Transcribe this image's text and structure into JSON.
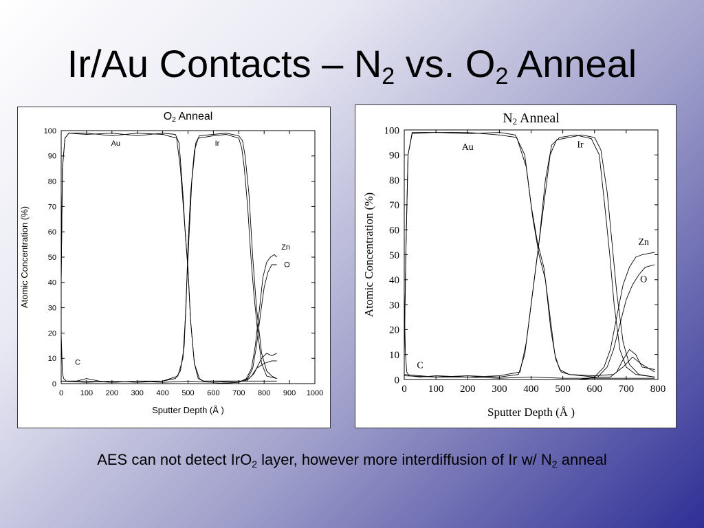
{
  "slide": {
    "title_main": "Ir/Au Contacts – N",
    "title_sub1": "2",
    "title_mid": " vs. O",
    "title_sub2": "2",
    "title_end": " Anneal",
    "caption_pre": "AES can not detect IrO",
    "caption_sub1": "2",
    "caption_mid": " layer, however more interdiffusion of Ir w/ N",
    "caption_sub2": "2",
    "caption_end": " anneal"
  },
  "chart_data": [
    {
      "type": "line",
      "title": "O",
      "title_sub": "2",
      "title_end": " Anneal",
      "xlabel": "Sputter Depth (Å )",
      "ylabel": "Atomic Concentration (%)",
      "xlim": [
        0,
        1000
      ],
      "ylim": [
        0,
        100
      ],
      "xticks": [
        0,
        100,
        200,
        300,
        400,
        500,
        600,
        700,
        800,
        900,
        1000
      ],
      "yticks": [
        0,
        10,
        20,
        30,
        40,
        50,
        60,
        70,
        80,
        90,
        100
      ],
      "annotations": [
        {
          "text": "Au",
          "x": 215,
          "y": 94
        },
        {
          "text": "Ir",
          "x": 615,
          "y": 94
        },
        {
          "text": "Zn",
          "x": 885,
          "y": 53
        },
        {
          "text": "O",
          "x": 890,
          "y": 46
        },
        {
          "text": "C",
          "x": 65,
          "y": 7.5
        }
      ],
      "series": [
        {
          "values": [
            [
              0,
              40
            ],
            [
              5,
              85
            ],
            [
              15,
              97
            ],
            [
              30,
              99
            ],
            [
              100,
              98.5
            ],
            [
              200,
              99
            ],
            [
              300,
              98
            ],
            [
              400,
              99
            ],
            [
              450,
              98.5
            ],
            [
              465,
              95
            ],
            [
              480,
              75
            ],
            [
              490,
              58
            ],
            [
              500,
              45
            ],
            [
              510,
              25
            ],
            [
              525,
              8
            ],
            [
              540,
              2
            ],
            [
              560,
              1
            ],
            [
              700,
              1
            ],
            [
              720,
              1
            ],
            [
              740,
              2
            ],
            [
              760,
              4
            ],
            [
              790,
              10
            ],
            [
              810,
              12
            ],
            [
              830,
              11
            ],
            [
              850,
              12
            ]
          ]
        },
        {
          "values": [
            [
              0,
              40
            ],
            [
              5,
              85
            ],
            [
              15,
              97
            ],
            [
              30,
              99
            ],
            [
              100,
              99
            ],
            [
              200,
              98
            ],
            [
              300,
              99
            ],
            [
              400,
              98.5
            ],
            [
              455,
              97
            ],
            [
              470,
              85
            ],
            [
              485,
              65
            ],
            [
              500,
              45
            ],
            [
              510,
              25
            ],
            [
              525,
              8
            ],
            [
              545,
              2
            ],
            [
              560,
              1
            ],
            [
              700,
              1
            ],
            [
              730,
              1
            ],
            [
              750,
              3
            ],
            [
              770,
              6
            ],
            [
              800,
              8
            ],
            [
              830,
              9
            ],
            [
              850,
              9
            ]
          ]
        },
        {
          "values": [
            [
              0,
              1
            ],
            [
              100,
              1
            ],
            [
              200,
              0.5
            ],
            [
              300,
              1
            ],
            [
              400,
              1
            ],
            [
              450,
              2
            ],
            [
              470,
              5
            ],
            [
              485,
              15
            ],
            [
              495,
              40
            ],
            [
              505,
              60
            ],
            [
              515,
              80
            ],
            [
              530,
              95
            ],
            [
              545,
              98
            ],
            [
              600,
              98.5
            ],
            [
              650,
              99
            ],
            [
              700,
              98
            ],
            [
              715,
              96
            ],
            [
              725,
              90
            ],
            [
              740,
              75
            ],
            [
              755,
              50
            ],
            [
              770,
              30
            ],
            [
              790,
              12
            ],
            [
              810,
              5
            ],
            [
              830,
              3
            ],
            [
              850,
              2
            ]
          ]
        },
        {
          "values": [
            [
              0,
              1
            ],
            [
              100,
              0.5
            ],
            [
              200,
              1
            ],
            [
              300,
              0.5
            ],
            [
              400,
              1
            ],
            [
              460,
              3
            ],
            [
              480,
              10
            ],
            [
              492,
              30
            ],
            [
              500,
              55
            ],
            [
              510,
              75
            ],
            [
              525,
              92
            ],
            [
              540,
              97
            ],
            [
              600,
              98
            ],
            [
              650,
              98.5
            ],
            [
              700,
              97
            ],
            [
              712,
              93
            ],
            [
              722,
              85
            ],
            [
              735,
              70
            ],
            [
              748,
              50
            ],
            [
              760,
              35
            ],
            [
              775,
              20
            ],
            [
              790,
              8
            ],
            [
              810,
              3
            ],
            [
              850,
              2
            ]
          ]
        },
        {
          "values": [
            [
              0,
              0
            ],
            [
              600,
              0
            ],
            [
              700,
              0.5
            ],
            [
              730,
              2
            ],
            [
              750,
              6
            ],
            [
              765,
              15
            ],
            [
              780,
              28
            ],
            [
              795,
              42
            ],
            [
              810,
              48
            ],
            [
              825,
              50
            ],
            [
              840,
              51
            ],
            [
              850,
              50
            ]
          ]
        },
        {
          "values": [
            [
              0,
              0
            ],
            [
              600,
              0
            ],
            [
              700,
              0.5
            ],
            [
              735,
              2
            ],
            [
              755,
              6
            ],
            [
              770,
              15
            ],
            [
              785,
              27
            ],
            [
              800,
              38
            ],
            [
              815,
              44
            ],
            [
              830,
              47
            ],
            [
              850,
              47
            ]
          ]
        },
        {
          "values": [
            [
              0,
              20
            ],
            [
              5,
              4
            ],
            [
              10,
              2
            ],
            [
              20,
              1
            ],
            [
              60,
              1
            ],
            [
              100,
              2
            ],
            [
              150,
              1
            ],
            [
              200,
              0.5
            ],
            [
              300,
              1
            ],
            [
              400,
              0.5
            ],
            [
              500,
              1
            ],
            [
              600,
              0.5
            ],
            [
              700,
              1
            ],
            [
              850,
              1
            ]
          ]
        }
      ]
    },
    {
      "type": "line",
      "title": "N",
      "title_sub": "2",
      "title_end": " Anneal",
      "xlabel": "Sputter Depth (Å )",
      "ylabel": "Atomic Concentration (%)",
      "xlim": [
        0,
        800
      ],
      "ylim": [
        0,
        100
      ],
      "xticks": [
        0,
        100,
        200,
        300,
        400,
        500,
        600,
        700,
        800
      ],
      "yticks": [
        0,
        10,
        20,
        30,
        40,
        50,
        60,
        70,
        80,
        90,
        100
      ],
      "annotations": [
        {
          "text": "Au",
          "x": 200,
          "y": 92
        },
        {
          "text": "Ir",
          "x": 555,
          "y": 93
        },
        {
          "text": "Zn",
          "x": 755,
          "y": 54
        },
        {
          "text": "O",
          "x": 755,
          "y": 39
        },
        {
          "text": "C",
          "x": 50,
          "y": 4.5
        }
      ],
      "series": [
        {
          "values": [
            [
              0,
              10
            ],
            [
              5,
              50
            ],
            [
              12,
              90
            ],
            [
              25,
              99
            ],
            [
              100,
              99
            ],
            [
              200,
              98.5
            ],
            [
              300,
              99
            ],
            [
              350,
              98
            ],
            [
              380,
              90
            ],
            [
              400,
              70
            ],
            [
              420,
              55
            ],
            [
              440,
              45
            ],
            [
              460,
              25
            ],
            [
              475,
              10
            ],
            [
              490,
              4
            ],
            [
              520,
              2
            ],
            [
              600,
              1
            ],
            [
              650,
              1
            ],
            [
              670,
              3
            ],
            [
              690,
              8
            ],
            [
              710,
              12
            ],
            [
              730,
              10
            ],
            [
              750,
              5
            ],
            [
              790,
              4
            ]
          ]
        },
        {
          "values": [
            [
              0,
              10
            ],
            [
              5,
              50
            ],
            [
              12,
              90
            ],
            [
              25,
              98.5
            ],
            [
              100,
              99
            ],
            [
              200,
              99
            ],
            [
              300,
              98
            ],
            [
              355,
              97
            ],
            [
              385,
              85
            ],
            [
              405,
              65
            ],
            [
              425,
              50
            ],
            [
              445,
              40
            ],
            [
              462,
              20
            ],
            [
              478,
              8
            ],
            [
              495,
              3
            ],
            [
              520,
              2
            ],
            [
              600,
              1.5
            ],
            [
              660,
              2
            ],
            [
              690,
              5
            ],
            [
              720,
              9
            ],
            [
              750,
              6
            ],
            [
              790,
              3
            ]
          ]
        },
        {
          "values": [
            [
              0,
              2
            ],
            [
              100,
              1
            ],
            [
              200,
              1.5
            ],
            [
              300,
              1
            ],
            [
              360,
              2
            ],
            [
              380,
              10
            ],
            [
              400,
              30
            ],
            [
              420,
              50
            ],
            [
              440,
              70
            ],
            [
              460,
              90
            ],
            [
              480,
              96
            ],
            [
              520,
              97
            ],
            [
              560,
              98
            ],
            [
              600,
              97
            ],
            [
              620,
              92
            ],
            [
              640,
              75
            ],
            [
              655,
              55
            ],
            [
              670,
              35
            ],
            [
              690,
              15
            ],
            [
              710,
              6
            ],
            [
              740,
              2
            ],
            [
              790,
              1
            ]
          ]
        },
        {
          "values": [
            [
              0,
              1.5
            ],
            [
              100,
              1
            ],
            [
              200,
              1
            ],
            [
              300,
              1.5
            ],
            [
              365,
              3
            ],
            [
              385,
              15
            ],
            [
              405,
              35
            ],
            [
              425,
              55
            ],
            [
              445,
              80
            ],
            [
              465,
              94
            ],
            [
              490,
              97
            ],
            [
              540,
              98
            ],
            [
              590,
              96.5
            ],
            [
              615,
              90
            ],
            [
              632,
              70
            ],
            [
              648,
              50
            ],
            [
              662,
              30
            ],
            [
              680,
              12
            ],
            [
              700,
              5
            ],
            [
              730,
              2
            ],
            [
              790,
              1
            ]
          ]
        },
        {
          "values": [
            [
              0,
              0
            ],
            [
              550,
              0
            ],
            [
              600,
              1
            ],
            [
              630,
              5
            ],
            [
              650,
              12
            ],
            [
              670,
              25
            ],
            [
              690,
              38
            ],
            [
              710,
              45
            ],
            [
              730,
              49
            ],
            [
              750,
              50
            ],
            [
              790,
              51
            ]
          ]
        },
        {
          "values": [
            [
              0,
              0
            ],
            [
              560,
              0
            ],
            [
              610,
              1
            ],
            [
              640,
              5
            ],
            [
              660,
              12
            ],
            [
              680,
              22
            ],
            [
              700,
              32
            ],
            [
              720,
              38
            ],
            [
              740,
              42
            ],
            [
              760,
              45
            ],
            [
              790,
              46
            ]
          ]
        },
        {
          "values": [
            [
              0,
              30
            ],
            [
              4,
              10
            ],
            [
              8,
              3
            ],
            [
              15,
              1.5
            ],
            [
              50,
              1
            ],
            [
              100,
              1.5
            ],
            [
              200,
              1
            ],
            [
              300,
              0.5
            ],
            [
              400,
              1
            ],
            [
              500,
              0.5
            ],
            [
              600,
              0.5
            ],
            [
              700,
              0.5
            ],
            [
              790,
              0.5
            ]
          ]
        }
      ]
    }
  ]
}
